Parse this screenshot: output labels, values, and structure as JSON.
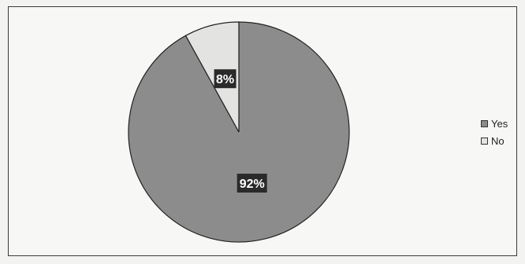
{
  "chart_data": {
    "type": "pie",
    "title": "",
    "categories": [
      "Yes",
      "No"
    ],
    "values": [
      92,
      8
    ],
    "data_labels": [
      "92%",
      "8%"
    ],
    "colors": {
      "Yes": "#8c8c8c",
      "No": "#e3e3e1"
    },
    "legend_position": "right"
  }
}
